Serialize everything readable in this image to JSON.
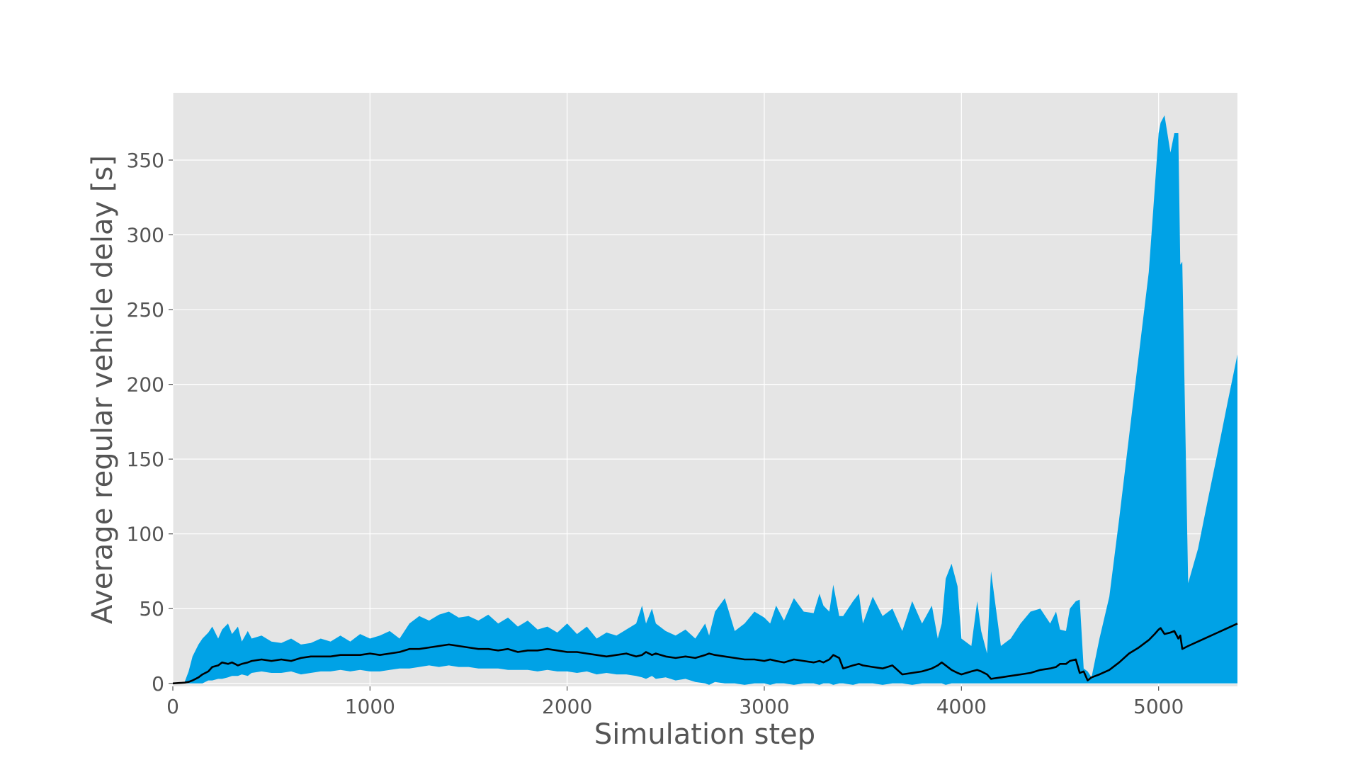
{
  "chart_data": {
    "type": "area",
    "title": "",
    "xlabel": "Simulation step",
    "ylabel": "Average regular vehicle delay [s]",
    "xlim": [
      0,
      5400
    ],
    "ylim": [
      -2,
      395
    ],
    "xticks": [
      0,
      1000,
      2000,
      3000,
      4000,
      5000
    ],
    "yticks": [
      0,
      50,
      100,
      150,
      200,
      250,
      300,
      350
    ],
    "grid": true,
    "legend": "none",
    "colors": {
      "band": "#00a2e6",
      "mean": "#000000",
      "plot_bg": "#e5e5e5",
      "grid": "#ffffff",
      "text": "#555555"
    },
    "series": [
      {
        "role": "band",
        "x": [
          0,
          60,
          80,
          100,
          130,
          150,
          180,
          200,
          230,
          250,
          280,
          300,
          330,
          350,
          380,
          400,
          450,
          500,
          550,
          600,
          650,
          700,
          750,
          800,
          850,
          900,
          950,
          1000,
          1050,
          1100,
          1150,
          1200,
          1250,
          1300,
          1350,
          1400,
          1450,
          1500,
          1550,
          1600,
          1650,
          1700,
          1750,
          1800,
          1850,
          1900,
          1950,
          2000,
          2050,
          2100,
          2150,
          2200,
          2250,
          2300,
          2350,
          2380,
          2400,
          2430,
          2450,
          2500,
          2550,
          2600,
          2650,
          2700,
          2720,
          2750,
          2800,
          2850,
          2900,
          2950,
          3000,
          3030,
          3060,
          3100,
          3150,
          3200,
          3250,
          3280,
          3300,
          3330,
          3350,
          3380,
          3400,
          3450,
          3480,
          3500,
          3550,
          3600,
          3650,
          3700,
          3750,
          3800,
          3850,
          3880,
          3900,
          3920,
          3950,
          3980,
          4000,
          4050,
          4080,
          4100,
          4130,
          4150,
          4200,
          4250,
          4300,
          4350,
          4400,
          4450,
          4480,
          4500,
          4530,
          4550,
          4580,
          4600,
          4620,
          4640,
          4660,
          4700,
          4750,
          4800,
          4850,
          4900,
          4950,
          4980,
          5000,
          5010,
          5030,
          5060,
          5080,
          5100,
          5110,
          5120,
          5150,
          5200,
          5250,
          5300,
          5350,
          5400
        ],
        "upper": [
          0,
          1,
          8,
          18,
          26,
          30,
          34,
          38,
          30,
          36,
          40,
          33,
          38,
          28,
          35,
          30,
          32,
          28,
          27,
          30,
          26,
          27,
          30,
          28,
          32,
          28,
          33,
          30,
          32,
          35,
          30,
          40,
          45,
          42,
          46,
          48,
          44,
          45,
          42,
          46,
          40,
          44,
          38,
          42,
          36,
          38,
          34,
          40,
          33,
          38,
          30,
          34,
          32,
          36,
          40,
          52,
          40,
          50,
          40,
          35,
          32,
          36,
          30,
          40,
          32,
          48,
          57,
          35,
          40,
          48,
          44,
          40,
          52,
          42,
          57,
          48,
          47,
          60,
          52,
          48,
          66,
          45,
          45,
          55,
          60,
          40,
          58,
          45,
          50,
          35,
          55,
          40,
          52,
          30,
          40,
          70,
          80,
          65,
          30,
          25,
          55,
          35,
          20,
          75,
          25,
          30,
          40,
          48,
          50,
          40,
          48,
          36,
          35,
          50,
          55,
          56,
          10,
          8,
          4,
          30,
          58,
          110,
          165,
          220,
          275,
          330,
          368,
          375,
          380,
          355,
          368,
          368,
          280,
          282,
          67,
          90,
          123,
          155,
          188,
          220
        ],
        "lower": [
          0,
          0,
          0,
          0,
          0,
          0,
          2,
          2,
          3,
          3,
          4,
          5,
          5,
          6,
          5,
          7,
          8,
          7,
          7,
          8,
          6,
          7,
          8,
          8,
          9,
          8,
          9,
          8,
          8,
          9,
          10,
          10,
          11,
          12,
          11,
          12,
          11,
          11,
          10,
          10,
          10,
          9,
          9,
          9,
          8,
          9,
          8,
          8,
          7,
          8,
          6,
          7,
          6,
          6,
          5,
          4,
          3,
          5,
          3,
          4,
          2,
          3,
          1,
          0,
          -1,
          1,
          0,
          0,
          -1,
          0,
          0,
          -1,
          0,
          0,
          -1,
          0,
          0,
          -1,
          0,
          0,
          -1,
          0,
          0,
          -1,
          0,
          0,
          0,
          -1,
          0,
          0,
          -1,
          0,
          0,
          0,
          0,
          -1,
          0,
          0,
          0,
          0,
          0,
          0,
          0,
          0,
          0,
          0,
          0,
          0,
          0,
          0,
          0,
          0,
          0,
          0,
          0,
          0,
          0,
          0,
          0,
          0,
          0,
          0,
          0,
          0,
          0,
          0,
          0,
          0,
          0,
          0,
          0,
          0,
          0,
          0,
          0,
          0,
          0,
          0,
          0,
          0
        ]
      },
      {
        "role": "mean",
        "x": [
          0,
          60,
          80,
          100,
          130,
          150,
          180,
          200,
          230,
          250,
          280,
          300,
          330,
          350,
          380,
          400,
          450,
          500,
          550,
          600,
          650,
          700,
          750,
          800,
          850,
          900,
          950,
          1000,
          1050,
          1100,
          1150,
          1200,
          1250,
          1300,
          1350,
          1400,
          1450,
          1500,
          1550,
          1600,
          1650,
          1700,
          1750,
          1800,
          1850,
          1900,
          1950,
          2000,
          2050,
          2100,
          2150,
          2200,
          2250,
          2300,
          2350,
          2380,
          2400,
          2430,
          2450,
          2500,
          2550,
          2600,
          2650,
          2700,
          2720,
          2750,
          2800,
          2850,
          2900,
          2950,
          3000,
          3030,
          3060,
          3100,
          3150,
          3200,
          3250,
          3280,
          3300,
          3330,
          3350,
          3380,
          3400,
          3450,
          3480,
          3500,
          3550,
          3600,
          3650,
          3700,
          3750,
          3800,
          3850,
          3880,
          3900,
          3920,
          3950,
          3980,
          4000,
          4050,
          4080,
          4100,
          4130,
          4150,
          4200,
          4250,
          4300,
          4350,
          4400,
          4450,
          4480,
          4500,
          4530,
          4550,
          4580,
          4600,
          4620,
          4640,
          4660,
          4700,
          4750,
          4800,
          4850,
          4900,
          4950,
          4980,
          5000,
          5010,
          5030,
          5060,
          5080,
          5100,
          5110,
          5120,
          5150,
          5200,
          5250,
          5300,
          5350,
          5400
        ],
        "values": [
          0,
          0.5,
          1,
          2,
          4,
          6,
          8,
          11,
          12,
          14,
          13,
          14,
          12,
          13,
          14,
          15,
          16,
          15,
          16,
          15,
          17,
          18,
          18,
          18,
          19,
          19,
          19,
          20,
          19,
          20,
          21,
          23,
          23,
          24,
          25,
          26,
          25,
          24,
          23,
          23,
          22,
          23,
          21,
          22,
          22,
          23,
          22,
          21,
          21,
          20,
          19,
          18,
          19,
          20,
          18,
          19,
          21,
          19,
          20,
          18,
          17,
          18,
          17,
          19,
          20,
          19,
          18,
          17,
          16,
          16,
          15,
          16,
          15,
          14,
          16,
          15,
          14,
          15,
          14,
          16,
          19,
          17,
          10,
          12,
          13,
          12,
          11,
          10,
          12,
          6,
          7,
          8,
          10,
          12,
          14,
          12,
          9,
          7,
          6,
          8,
          9,
          8,
          6,
          3,
          4,
          5,
          6,
          7,
          9,
          10,
          11,
          13,
          13,
          15,
          16,
          7,
          8,
          2,
          4,
          6,
          9,
          14,
          20,
          24,
          29,
          33,
          36,
          37,
          33,
          34,
          35,
          30,
          32,
          23,
          25,
          28,
          31,
          34,
          37,
          40
        ]
      }
    ]
  }
}
